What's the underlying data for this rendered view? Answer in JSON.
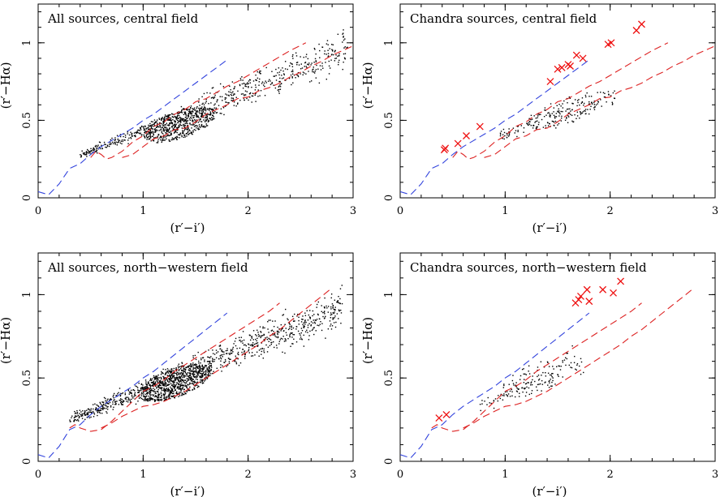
{
  "chart_data": [
    {
      "type": "scatter",
      "title": "All sources, central field",
      "xlabel": "(r′−i′)",
      "ylabel": "(r′−Hα)",
      "xlim": [
        0,
        3
      ],
      "ylim": [
        0,
        1.25
      ],
      "xticks": [
        "0",
        "1",
        "2",
        "3"
      ],
      "yticks": [
        "0",
        "0.5",
        "1"
      ],
      "grid": false,
      "cloud": {
        "n": 1200,
        "seed": 11,
        "x_range": [
          0.4,
          2.95
        ],
        "y_at_x_low": [
          0.3,
          0.25
        ],
        "y_at_x_high": [
          1.15,
          0.75
        ],
        "core": [
          1.35,
          0.47
        ]
      },
      "markers": [],
      "series": [
        {
          "style": "dashed",
          "color": "#3344dd",
          "x": [
            0,
            0.1,
            0.2,
            0.3,
            0.4,
            0.5,
            0.6,
            0.7,
            0.8,
            0.9,
            1.0,
            1.1,
            1.2,
            1.3,
            1.4,
            1.5,
            1.6,
            1.7,
            1.8
          ],
          "y": [
            0.04,
            0.02,
            0.09,
            0.19,
            0.22,
            0.28,
            0.33,
            0.37,
            0.41,
            0.45,
            0.5,
            0.54,
            0.59,
            0.64,
            0.69,
            0.74,
            0.79,
            0.84,
            0.89
          ]
        },
        {
          "style": "dashed",
          "color": "#dd2222",
          "x": [
            0.5,
            0.55,
            0.6,
            0.65,
            0.7,
            0.8,
            0.9,
            1.0,
            1.1,
            1.2,
            1.3,
            1.4,
            1.5,
            1.6,
            1.7,
            1.8,
            1.9,
            2.0,
            2.1,
            2.2,
            2.3,
            2.4,
            2.55
          ],
          "y": [
            0.26,
            0.3,
            0.28,
            0.25,
            0.26,
            0.3,
            0.36,
            0.4,
            0.46,
            0.49,
            0.54,
            0.57,
            0.62,
            0.64,
            0.68,
            0.72,
            0.75,
            0.79,
            0.83,
            0.87,
            0.91,
            0.95,
            1.0
          ]
        },
        {
          "style": "dashed",
          "color": "#dd2222",
          "x": [
            0.8,
            0.9,
            1.0,
            1.1,
            1.2,
            1.3,
            1.4,
            1.5,
            1.6,
            1.7,
            1.8,
            1.9,
            2.0,
            2.1,
            2.2,
            2.3,
            2.4,
            2.5,
            2.6,
            2.7,
            2.8,
            2.9,
            3.0
          ],
          "y": [
            0.26,
            0.28,
            0.33,
            0.38,
            0.4,
            0.44,
            0.45,
            0.49,
            0.54,
            0.57,
            0.6,
            0.64,
            0.65,
            0.69,
            0.71,
            0.74,
            0.78,
            0.81,
            0.85,
            0.88,
            0.92,
            0.95,
            0.98
          ]
        }
      ]
    },
    {
      "type": "scatter",
      "title": "Chandra sources, central field",
      "xlabel": "(r′−i′)",
      "ylabel": "(r′−Hα)",
      "xlim": [
        0,
        3
      ],
      "ylim": [
        0,
        1.25
      ],
      "xticks": [
        "0",
        "1",
        "2",
        "3"
      ],
      "yticks": [
        "0",
        "0.5",
        "1"
      ],
      "grid": false,
      "cloud": {
        "n": 230,
        "seed": 23,
        "x_range": [
          0.95,
          2.05
        ],
        "y_at_x_low": [
          0.45,
          0.35
        ],
        "y_at_x_high": [
          0.8,
          0.55
        ],
        "core": [
          1.55,
          0.55
        ]
      },
      "markers": [
        {
          "x": 0.42,
          "y": 0.31
        },
        {
          "x": 0.43,
          "y": 0.32
        },
        {
          "x": 0.55,
          "y": 0.35
        },
        {
          "x": 0.63,
          "y": 0.4
        },
        {
          "x": 0.76,
          "y": 0.46
        },
        {
          "x": 1.43,
          "y": 0.75
        },
        {
          "x": 1.5,
          "y": 0.83
        },
        {
          "x": 1.54,
          "y": 0.84
        },
        {
          "x": 1.6,
          "y": 0.86
        },
        {
          "x": 1.62,
          "y": 0.85
        },
        {
          "x": 1.68,
          "y": 0.92
        },
        {
          "x": 1.74,
          "y": 0.9
        },
        {
          "x": 1.98,
          "y": 0.99
        },
        {
          "x": 2.01,
          "y": 1.0
        },
        {
          "x": 2.25,
          "y": 1.08
        },
        {
          "x": 2.3,
          "y": 1.12
        }
      ],
      "series": [
        {
          "style": "dashed",
          "color": "#3344dd",
          "x": [
            0,
            0.1,
            0.2,
            0.3,
            0.4,
            0.5,
            0.6,
            0.7,
            0.8,
            0.9,
            1.0,
            1.1,
            1.2,
            1.3,
            1.4,
            1.5,
            1.6,
            1.7,
            1.8
          ],
          "y": [
            0.04,
            0.02,
            0.09,
            0.19,
            0.22,
            0.28,
            0.33,
            0.37,
            0.41,
            0.45,
            0.5,
            0.54,
            0.59,
            0.64,
            0.69,
            0.74,
            0.79,
            0.84,
            0.89
          ]
        },
        {
          "style": "dashed",
          "color": "#dd2222",
          "x": [
            0.5,
            0.55,
            0.6,
            0.65,
            0.7,
            0.8,
            0.9,
            1.0,
            1.1,
            1.2,
            1.3,
            1.4,
            1.5,
            1.6,
            1.7,
            1.8,
            1.9,
            2.0,
            2.1,
            2.2,
            2.3,
            2.4,
            2.55
          ],
          "y": [
            0.26,
            0.3,
            0.28,
            0.25,
            0.26,
            0.3,
            0.36,
            0.4,
            0.46,
            0.49,
            0.54,
            0.57,
            0.62,
            0.64,
            0.68,
            0.72,
            0.75,
            0.79,
            0.83,
            0.87,
            0.91,
            0.95,
            1.0
          ]
        },
        {
          "style": "dashed",
          "color": "#dd2222",
          "x": [
            0.8,
            0.9,
            1.0,
            1.1,
            1.2,
            1.3,
            1.4,
            1.5,
            1.6,
            1.7,
            1.8,
            1.9,
            2.0,
            2.1,
            2.2,
            2.3,
            2.4,
            2.5,
            2.6,
            2.7,
            2.8,
            2.9,
            3.0
          ],
          "y": [
            0.26,
            0.28,
            0.33,
            0.38,
            0.4,
            0.44,
            0.45,
            0.49,
            0.54,
            0.57,
            0.6,
            0.64,
            0.65,
            0.69,
            0.71,
            0.74,
            0.78,
            0.81,
            0.85,
            0.88,
            0.92,
            0.95,
            0.98
          ]
        }
      ]
    },
    {
      "type": "scatter",
      "title": "All sources, north−western field",
      "xlabel": "(r′−i′)",
      "ylabel": "(r′−Hα)",
      "xlim": [
        0,
        3
      ],
      "ylim": [
        0,
        1.25
      ],
      "xticks": [
        "0",
        "1",
        "2",
        "3"
      ],
      "yticks": [
        "0",
        "0.5",
        "1"
      ],
      "grid": false,
      "cloud": {
        "n": 1700,
        "seed": 37,
        "x_range": [
          0.3,
          2.9
        ],
        "y_at_x_low": [
          0.3,
          0.2
        ],
        "y_at_x_high": [
          1.1,
          0.75
        ],
        "core": [
          1.3,
          0.47
        ]
      },
      "markers": [],
      "series": [
        {
          "style": "dashed",
          "color": "#3344dd",
          "x": [
            0,
            0.1,
            0.2,
            0.3,
            0.4,
            0.5,
            0.6,
            0.7,
            0.8,
            0.9,
            1.0,
            1.1,
            1.2,
            1.3,
            1.4,
            1.5,
            1.6,
            1.7,
            1.8
          ],
          "y": [
            0.04,
            0.02,
            0.09,
            0.19,
            0.22,
            0.28,
            0.33,
            0.37,
            0.41,
            0.45,
            0.5,
            0.54,
            0.59,
            0.64,
            0.69,
            0.74,
            0.79,
            0.84,
            0.89
          ]
        },
        {
          "style": "dashed",
          "color": "#dd2222",
          "x": [
            0.3,
            0.35,
            0.4,
            0.5,
            0.6,
            0.7,
            0.8,
            0.9,
            1.0,
            1.1,
            1.2,
            1.3,
            1.4,
            1.5,
            1.6,
            1.7,
            1.8,
            1.9,
            2.0,
            2.1,
            2.2,
            2.3
          ],
          "y": [
            0.2,
            0.22,
            0.2,
            0.18,
            0.19,
            0.24,
            0.3,
            0.36,
            0.42,
            0.45,
            0.49,
            0.54,
            0.58,
            0.62,
            0.66,
            0.7,
            0.74,
            0.78,
            0.82,
            0.86,
            0.9,
            0.95
          ]
        },
        {
          "style": "dashed",
          "color": "#dd2222",
          "x": [
            0.6,
            0.7,
            0.8,
            0.9,
            1.0,
            1.1,
            1.2,
            1.3,
            1.4,
            1.5,
            1.6,
            1.7,
            1.8,
            1.9,
            2.0,
            2.1,
            2.2,
            2.3,
            2.4,
            2.5,
            2.6,
            2.7,
            2.78
          ],
          "y": [
            0.2,
            0.23,
            0.27,
            0.3,
            0.33,
            0.34,
            0.36,
            0.39,
            0.42,
            0.46,
            0.5,
            0.54,
            0.58,
            0.62,
            0.66,
            0.7,
            0.75,
            0.79,
            0.84,
            0.89,
            0.94,
            0.99,
            1.03
          ]
        }
      ]
    },
    {
      "type": "scatter",
      "title": "Chandra sources, north−western field",
      "xlabel": "(r′−i′)",
      "ylabel": "(r′−Hα)",
      "xlim": [
        0,
        3
      ],
      "ylim": [
        0,
        1.25
      ],
      "xticks": [
        "0",
        "1",
        "2",
        "3"
      ],
      "yticks": [
        "0",
        "0.5",
        "1"
      ],
      "grid": false,
      "cloud": {
        "n": 170,
        "seed": 51,
        "x_range": [
          0.75,
          1.75
        ],
        "y_at_x_low": [
          0.38,
          0.27
        ],
        "y_at_x_high": [
          0.75,
          0.5
        ],
        "core": [
          1.3,
          0.5
        ]
      },
      "markers": [
        {
          "x": 0.37,
          "y": 0.26
        },
        {
          "x": 0.44,
          "y": 0.28
        },
        {
          "x": 1.67,
          "y": 0.95
        },
        {
          "x": 1.7,
          "y": 0.97
        },
        {
          "x": 1.72,
          "y": 0.99
        },
        {
          "x": 1.78,
          "y": 1.03
        },
        {
          "x": 1.8,
          "y": 0.96
        },
        {
          "x": 1.93,
          "y": 1.03
        },
        {
          "x": 2.03,
          "y": 1.01
        },
        {
          "x": 2.1,
          "y": 1.08
        }
      ],
      "series": [
        {
          "style": "dashed",
          "color": "#3344dd",
          "x": [
            0,
            0.1,
            0.2,
            0.3,
            0.4,
            0.5,
            0.6,
            0.7,
            0.8,
            0.9,
            1.0,
            1.1,
            1.2,
            1.3,
            1.4,
            1.5,
            1.6,
            1.7,
            1.8
          ],
          "y": [
            0.04,
            0.02,
            0.09,
            0.19,
            0.22,
            0.28,
            0.33,
            0.37,
            0.41,
            0.45,
            0.5,
            0.54,
            0.59,
            0.64,
            0.69,
            0.74,
            0.79,
            0.84,
            0.89
          ]
        },
        {
          "style": "dashed",
          "color": "#dd2222",
          "x": [
            0.3,
            0.35,
            0.4,
            0.5,
            0.6,
            0.7,
            0.8,
            0.9,
            1.0,
            1.1,
            1.2,
            1.3,
            1.4,
            1.5,
            1.6,
            1.7,
            1.8,
            1.9,
            2.0,
            2.1,
            2.2,
            2.3
          ],
          "y": [
            0.2,
            0.22,
            0.2,
            0.18,
            0.19,
            0.24,
            0.3,
            0.36,
            0.42,
            0.45,
            0.49,
            0.54,
            0.58,
            0.62,
            0.66,
            0.7,
            0.74,
            0.78,
            0.82,
            0.86,
            0.9,
            0.95
          ]
        },
        {
          "style": "dashed",
          "color": "#dd2222",
          "x": [
            0.6,
            0.7,
            0.8,
            0.9,
            1.0,
            1.1,
            1.2,
            1.3,
            1.4,
            1.5,
            1.6,
            1.7,
            1.8,
            1.9,
            2.0,
            2.1,
            2.2,
            2.3,
            2.4,
            2.5,
            2.6,
            2.7,
            2.78
          ],
          "y": [
            0.2,
            0.23,
            0.27,
            0.3,
            0.33,
            0.34,
            0.36,
            0.39,
            0.42,
            0.46,
            0.5,
            0.54,
            0.58,
            0.62,
            0.66,
            0.7,
            0.75,
            0.79,
            0.84,
            0.89,
            0.94,
            0.99,
            1.03
          ]
        }
      ]
    }
  ]
}
